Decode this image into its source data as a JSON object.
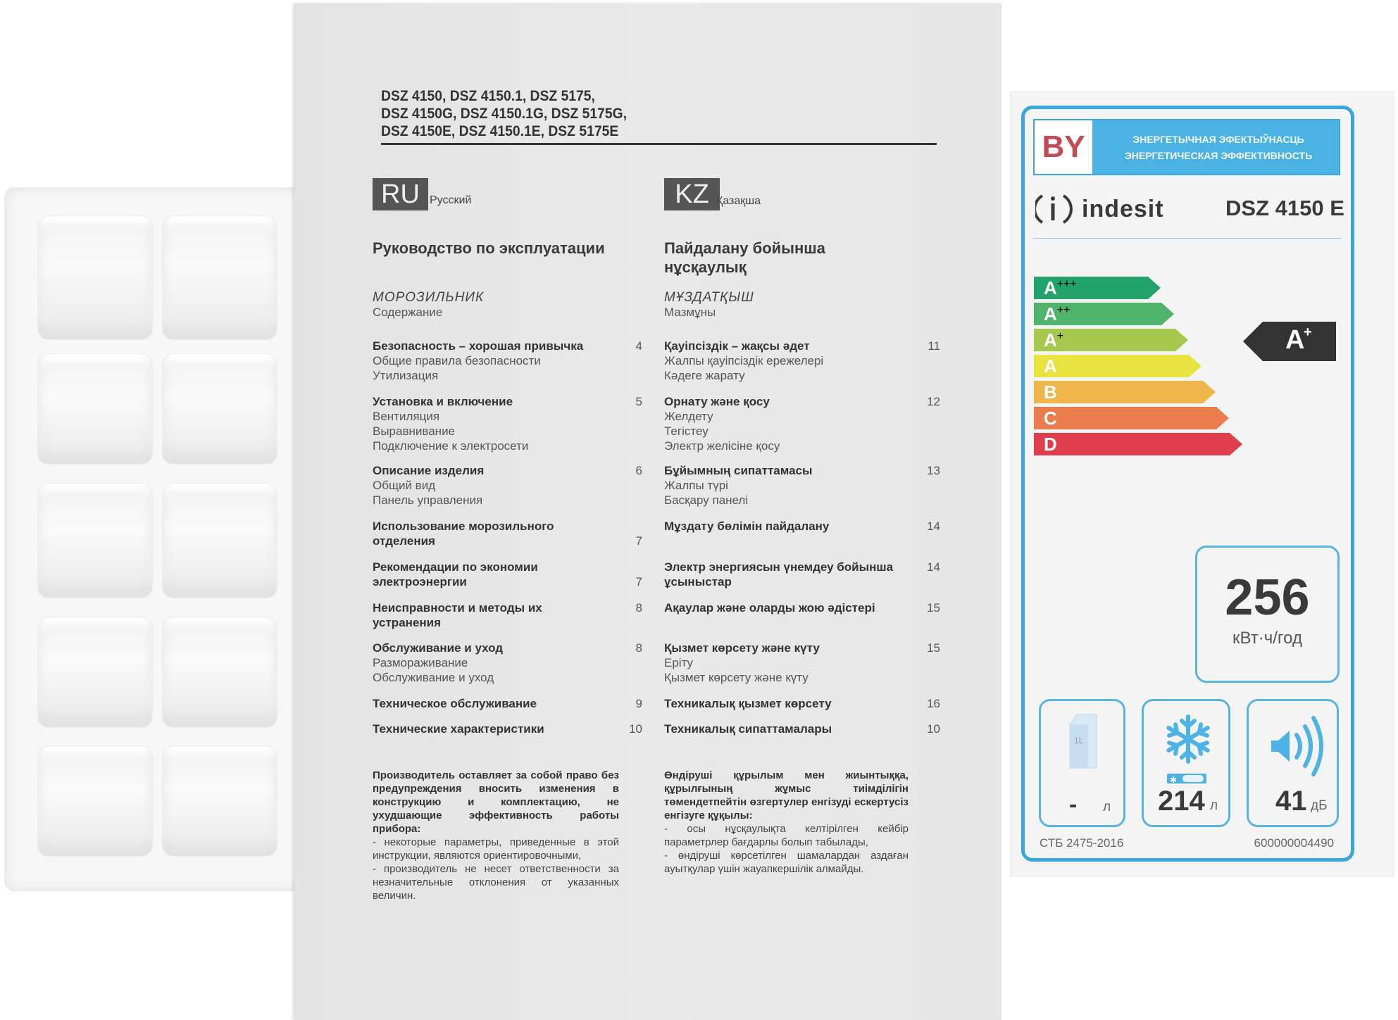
{
  "manual": {
    "models": [
      "DSZ 4150, DSZ 4150.1, DSZ 5175,",
      "DSZ 4150G, DSZ 4150.1G, DSZ 5175G,",
      "DSZ 4150E, DSZ 4150.1E, DSZ 5175E"
    ],
    "ru": {
      "code": "RU",
      "language": "Русский",
      "title": "Руководство по эксплуатации",
      "section": "МОРОЗИЛЬНИК",
      "contents": "Содержание",
      "toc": [
        {
          "title_lines": [
            "Безопасность – хорошая привычка"
          ],
          "subs": [
            "Общие правила безопасности",
            "Утилизация"
          ],
          "page": "4"
        },
        {
          "title_lines": [
            "Установка и включение"
          ],
          "subs": [
            "Вентиляция",
            "Выравнивание",
            "Подключение к электросети"
          ],
          "page": "5"
        },
        {
          "title_lines": [
            "Описание изделия"
          ],
          "subs": [
            "Общий вид",
            "Панель управления"
          ],
          "page": "6"
        },
        {
          "title_lines": [
            "Использование морозильного",
            "отделения"
          ],
          "subs": [],
          "page": "7"
        },
        {
          "title_lines": [
            "Рекомендации по экономии",
            "электроэнергии"
          ],
          "subs": [],
          "page": "7"
        },
        {
          "title_lines": [
            "Неисправности и методы их",
            "устранения"
          ],
          "subs": [],
          "page": "8"
        },
        {
          "title_lines": [
            "Обслуживание и уход"
          ],
          "subs": [
            "Размораживание",
            "Обслуживание и уход"
          ],
          "page": "8"
        },
        {
          "title_lines": [
            "Техническое обслуживание"
          ],
          "subs": [],
          "page": "9"
        },
        {
          "title_lines": [
            "Технические характеристики"
          ],
          "subs": [],
          "page": "10"
        }
      ],
      "notice_bold": [
        "Производитель оставляет за собой право без предупреждения вносить изменения в конструкцию и комплектацию, не ухудшающие эффективность работы прибора:"
      ],
      "notice": [
        "- некоторые параметры, приведенные в этой инструкции, являются ориентировочными,",
        "- производитель не несет ответственности за незначительные отклонения от указанных величин."
      ]
    },
    "kz": {
      "code": "KZ",
      "language": "Қазақша",
      "title": "Пайдалану бойынша нұсқаулық",
      "section": "МҰЗДАТҚЫШ",
      "contents": "Мазмұны",
      "toc": [
        {
          "title_lines": [
            "Қауіпсіздік – жақсы әдет"
          ],
          "subs": [
            "Жалпы қауіпсіздік ережелері",
            "Кәдеге жарату"
          ],
          "page": "11"
        },
        {
          "title_lines": [
            "Орнату және қосу"
          ],
          "subs": [
            "Желдету",
            "Тегістеу",
            "Электр желісіне қосу"
          ],
          "page": "12"
        },
        {
          "title_lines": [
            "Бұйымның сипаттамасы"
          ],
          "subs": [
            "Жалпы түрі",
            "Басқару панелі"
          ],
          "page": "13"
        },
        {
          "title_lines": [
            "Мұздату бөлімін пайдалану"
          ],
          "subs": [],
          "page": "14"
        },
        {
          "title_lines": [
            "Электр энергиясын үнемдеу бойынша",
            "ұсыныстар"
          ],
          "subs": [],
          "page": "14"
        },
        {
          "title_lines": [
            "Ақаулар және оларды жою әдістері"
          ],
          "subs": [],
          "page": "15"
        },
        {
          "title_lines": [
            "Қызмет көрсету және күту"
          ],
          "subs": [
            "Еріту",
            "Қызмет көрсету және күту"
          ],
          "page": "15"
        },
        {
          "title_lines": [
            "Техникалық қызмет көрсету"
          ],
          "subs": [],
          "page": "16"
        },
        {
          "title_lines": [
            "Техникалық сипаттамалары"
          ],
          "subs": [],
          "page": "10"
        }
      ],
      "notice_bold": [
        "Өндіруші құрылым мен жиынтыққа, құрылғының жұмыс тиімділігін төмендетпейтін өзгертулер енгізуді ескертусіз енгізуге құқылы:"
      ],
      "notice": [
        "- осы нұсқаулықта келтірілген кейбір параметрлер бағдарлы болып табылады,",
        "- өндіруші көрсетілген шамалардан аздаған ауытқулар үшін жауапкершілік алмайды."
      ]
    }
  },
  "energy_label": {
    "country": "BY",
    "header_lines": [
      "ЭНЕРГЕТЫЧНАЯ ЭФЕКТЫЎНАСЦЬ",
      "ЭНЕРГЕТИЧЕСКАЯ ЭФФЕКТИВНОСТЬ"
    ],
    "brand": "indesit",
    "model": "DSZ 4150 E",
    "classes": [
      {
        "letter": "A",
        "plus": "+++",
        "color": "#22a36c"
      },
      {
        "letter": "A",
        "plus": "++",
        "color": "#4fb46b"
      },
      {
        "letter": "A",
        "plus": "+",
        "color": "#a6c84c"
      },
      {
        "letter": "A",
        "plus": "",
        "color": "#e8e33e"
      },
      {
        "letter": "B",
        "plus": "",
        "color": "#efb64a"
      },
      {
        "letter": "C",
        "plus": "",
        "color": "#e97d4d"
      },
      {
        "letter": "D",
        "plus": "",
        "color": "#df3e4c"
      }
    ],
    "rating": {
      "letter": "A",
      "plus": "+",
      "class_index": 2,
      "color": "#333333"
    },
    "consumption": {
      "value": "256",
      "unit": "кВт·ч/год"
    },
    "fresh_volume": {
      "value": "-",
      "unit": "л",
      "icon": "milk-carton-icon",
      "icon_text": "1L"
    },
    "freezer_volume": {
      "value": "214",
      "unit": "л",
      "icon": "snowflake-icon"
    },
    "noise": {
      "value": "41",
      "unit": "дБ",
      "icon": "speaker-icon"
    },
    "standard": "СТБ 2475-2016",
    "code": "600000004490",
    "accent": "#3aa6dc"
  }
}
